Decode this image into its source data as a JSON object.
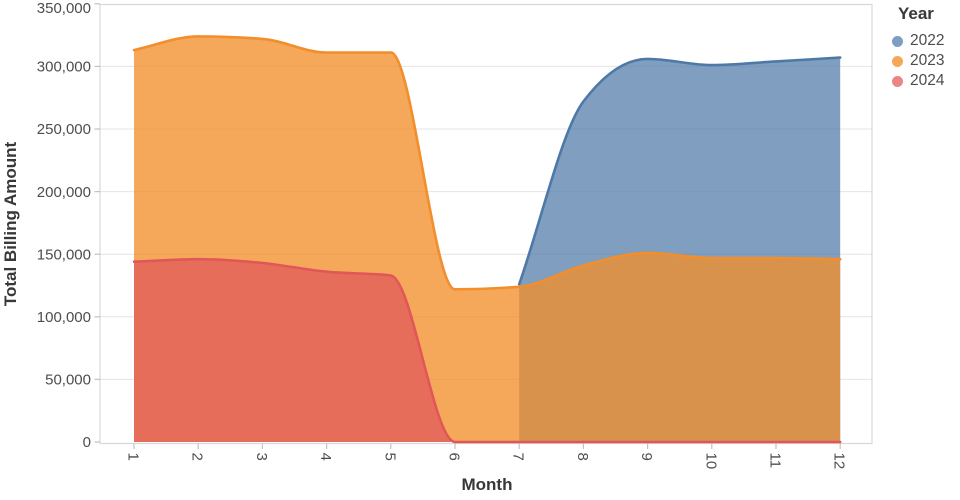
{
  "chart_data": {
    "type": "area",
    "title": "",
    "xlabel": "Month",
    "ylabel": "Total Billing Amount",
    "legend_title": "Year",
    "legend_position": "top-right",
    "grid": true,
    "interpolation": "monotone",
    "x_range": [
      1,
      12
    ],
    "ylim": [
      0,
      350000
    ],
    "x_ticks": [
      "1",
      "2",
      "3",
      "4",
      "5",
      "6",
      "7",
      "8",
      "9",
      "10",
      "11",
      "12"
    ],
    "y_ticks": [
      {
        "value": 0,
        "label": "0"
      },
      {
        "value": 50000,
        "label": "50,000"
      },
      {
        "value": 100000,
        "label": "100,000"
      },
      {
        "value": 150000,
        "label": "150,000"
      },
      {
        "value": 200000,
        "label": "200,000"
      },
      {
        "value": 250000,
        "label": "250,000"
      },
      {
        "value": 300000,
        "label": "300,000"
      },
      {
        "value": 350000,
        "label": "350,000"
      }
    ],
    "series": [
      {
        "name": "2022",
        "color": "#4e79a7",
        "fill": "rgba(78,121,167,0.72)",
        "values": [
          null,
          null,
          null,
          null,
          null,
          null,
          126000,
          272000,
          306000,
          301000,
          304000,
          307000
        ]
      },
      {
        "name": "2023",
        "color": "#f28e2b",
        "fill": "rgba(242,142,43,0.78)",
        "values": [
          313000,
          324000,
          322000,
          311000,
          311000,
          122000,
          124000,
          141000,
          151000,
          147000,
          147000,
          146000
        ]
      },
      {
        "name": "2024",
        "color": "#e15759",
        "fill": "rgba(225,87,89,0.72)",
        "values": [
          144000,
          146000,
          143000,
          136000,
          133000,
          0,
          0,
          0,
          0,
          0,
          0,
          0
        ]
      }
    ]
  }
}
